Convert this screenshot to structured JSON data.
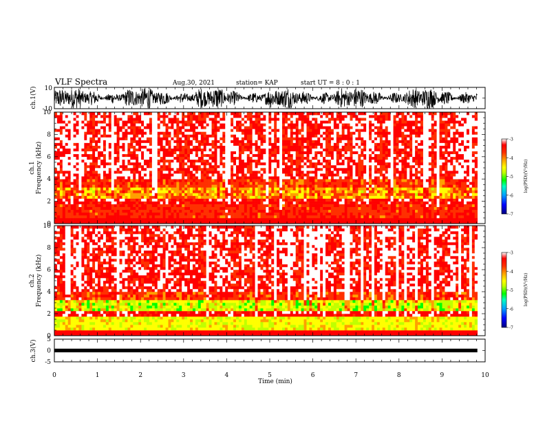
{
  "header": {
    "title": "VLF Spectra",
    "date": "Aug.30, 2021",
    "station": "station= KAP",
    "start": "start  UT =   8 : 0  : 1"
  },
  "chart_data": [
    {
      "type": "line",
      "name": "ch1-waveform",
      "ylabel": "ch.1(V)",
      "ylim": [
        -10,
        10
      ],
      "ytick_labels": [
        "10",
        "-10"
      ],
      "xlim": [
        0,
        10
      ]
    },
    {
      "type": "heatmap",
      "name": "ch1-spectrogram",
      "ylabel": "ch.1\nFrequency  (kHz)",
      "ylim": [
        0,
        10
      ],
      "yticks": [
        0,
        2,
        4,
        6,
        8,
        10
      ],
      "xlim": [
        0,
        10
      ],
      "colorbar": {
        "label": "log(PSD)(V²/Hz)",
        "range": [
          -7,
          -3
        ],
        "ticks": [
          -3,
          -4,
          -5,
          -6,
          -7
        ]
      }
    },
    {
      "type": "heatmap",
      "name": "ch2-spectrogram",
      "ylabel": "ch.2\nFrequency  (kHz)",
      "ylim": [
        0,
        10
      ],
      "yticks": [
        0,
        2,
        4,
        6,
        8,
        10
      ],
      "xlim": [
        0,
        10
      ],
      "colorbar": {
        "label": "log(PSD)(V²/Hz)",
        "range": [
          -7,
          -3
        ],
        "ticks": [
          -3,
          -4,
          -5,
          -6,
          -7
        ]
      }
    },
    {
      "type": "line",
      "name": "ch3-waveform",
      "ylabel": "ch.3(V)",
      "ylim": [
        -5,
        5
      ],
      "yticks": [
        -5,
        0,
        5
      ],
      "xlim": [
        0,
        10
      ]
    }
  ],
  "xaxis": {
    "label": "Time  (min)",
    "ticks": [
      0,
      1,
      2,
      3,
      4,
      5,
      6,
      7,
      8,
      9,
      10
    ],
    "data_end": 9.82
  },
  "colors": {
    "cmap": [
      "#000080",
      "#0000ff",
      "#00a0ff",
      "#00ffc0",
      "#00ff00",
      "#c0ff00",
      "#ffff00",
      "#ffa000",
      "#ff3000",
      "#ff0000",
      "#ffffff"
    ]
  }
}
